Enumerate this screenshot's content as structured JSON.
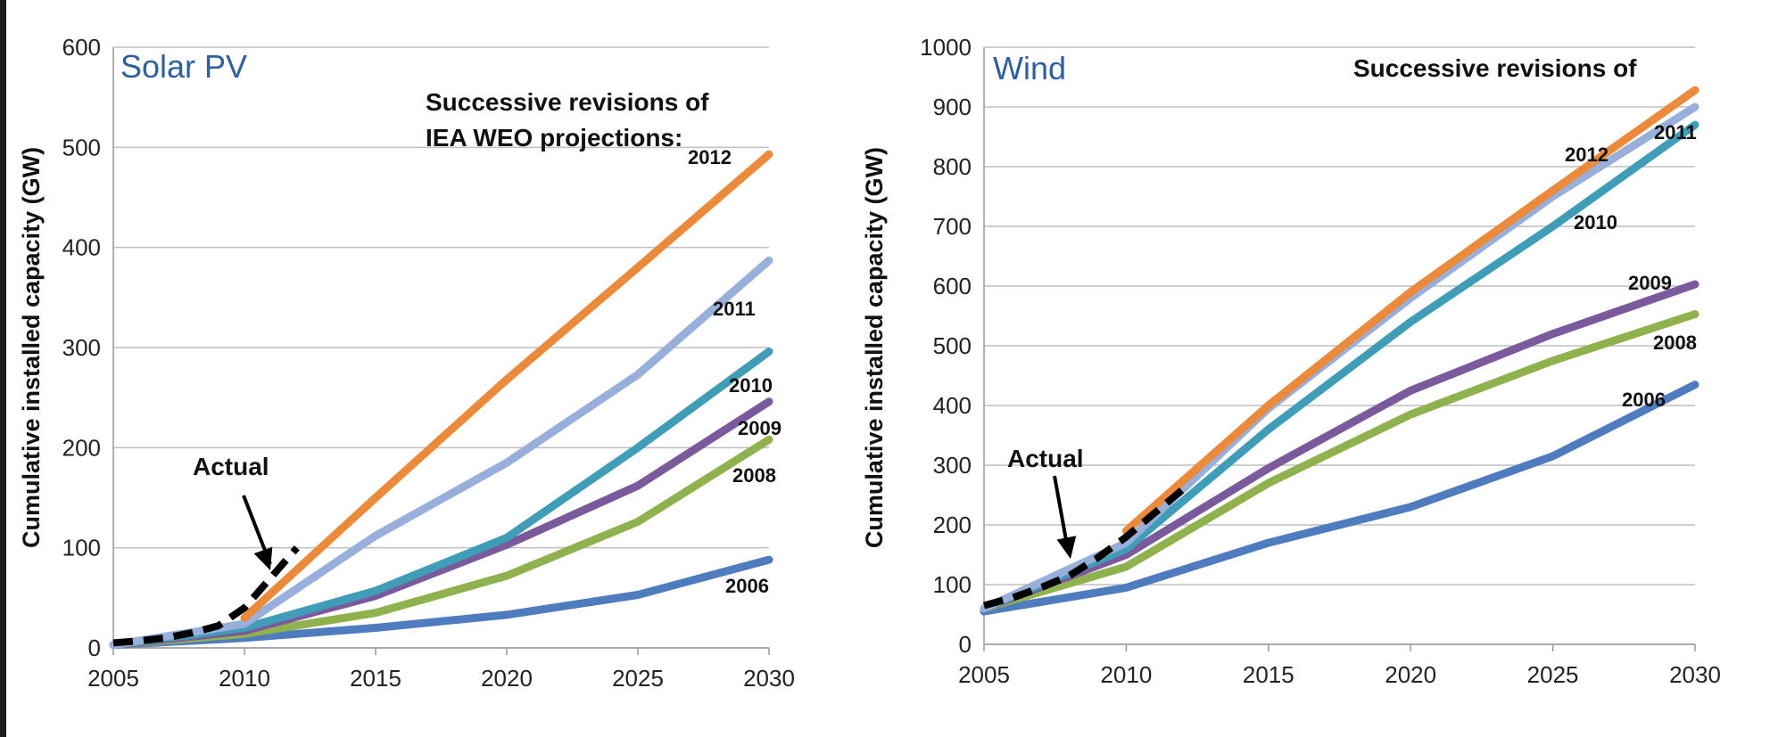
{
  "colors": {
    "2006": "#4f7cbf",
    "2008": "#8fb24f",
    "2009": "#7a5a9c",
    "2010": "#3f9db7",
    "2011": "#98aedb",
    "2012": "#ec8a3b",
    "Actual": "#000000",
    "grid": "#bfbfbf"
  },
  "chart_data": [
    {
      "type": "line",
      "title": "Solar PV",
      "ylabel": "Cumulative installed capacity (GW)",
      "xlabel": "",
      "xlim": [
        2005,
        2030
      ],
      "ylim": [
        0,
        600
      ],
      "xticks": [
        "2005",
        "2010",
        "2015",
        "2020",
        "2025",
        "2030"
      ],
      "yticks": [
        "0",
        "100",
        "200",
        "300",
        "400",
        "500",
        "600"
      ],
      "annotation_lines": [
        "Successive revisions of",
        "IEA WEO projections:"
      ],
      "actual_label": "Actual",
      "series": [
        {
          "name": "2006",
          "x": [
            2005,
            2010,
            2015,
            2020,
            2025,
            2030
          ],
          "y": [
            3,
            10,
            20,
            33,
            53,
            88
          ]
        },
        {
          "name": "2008",
          "x": [
            2005,
            2010,
            2015,
            2020,
            2025,
            2030
          ],
          "y": [
            3,
            14,
            35,
            72,
            126,
            208
          ]
        },
        {
          "name": "2009",
          "x": [
            2005,
            2010,
            2015,
            2020,
            2025,
            2030
          ],
          "y": [
            3,
            17,
            52,
            103,
            162,
            246
          ]
        },
        {
          "name": "2010",
          "x": [
            2005,
            2010,
            2015,
            2020,
            2025,
            2030
          ],
          "y": [
            3,
            20,
            57,
            110,
            200,
            296
          ]
        },
        {
          "name": "2011",
          "x": [
            2005,
            2010,
            2015,
            2020,
            2025,
            2030
          ],
          "y": [
            3,
            24,
            112,
            185,
            273,
            387
          ]
        },
        {
          "name": "2012",
          "x": [
            2010,
            2015,
            2020,
            2025,
            2030
          ],
          "y": [
            30,
            150,
            268,
            380,
            493
          ]
        },
        {
          "name": "Actual",
          "x": [
            2005,
            2006,
            2007,
            2008,
            2009,
            2010,
            2011,
            2012
          ],
          "y": [
            5,
            7,
            10,
            15,
            22,
            40,
            70,
            100
          ],
          "style": "dashed"
        }
      ]
    },
    {
      "type": "line",
      "title": "Wind",
      "ylabel": "Cumulative installed capacity (GW)",
      "xlabel": "",
      "xlim": [
        2005,
        2030
      ],
      "ylim": [
        0,
        1000
      ],
      "xticks": [
        "2005",
        "2010",
        "2015",
        "2020",
        "2025",
        "2030"
      ],
      "yticks": [
        "0",
        "100",
        "200",
        "300",
        "400",
        "500",
        "600",
        "700",
        "800",
        "900",
        "1000"
      ],
      "annotation_lines": [
        "Successive revisions of"
      ],
      "actual_label": "Actual",
      "series": [
        {
          "name": "2006",
          "x": [
            2005,
            2010,
            2015,
            2020,
            2025,
            2030
          ],
          "y": [
            55,
            95,
            170,
            230,
            315,
            435
          ]
        },
        {
          "name": "2008",
          "x": [
            2005,
            2010,
            2015,
            2020,
            2025,
            2030
          ],
          "y": [
            60,
            130,
            270,
            385,
            475,
            553
          ]
        },
        {
          "name": "2009",
          "x": [
            2005,
            2010,
            2015,
            2020,
            2025,
            2030
          ],
          "y": [
            60,
            150,
            295,
            425,
            520,
            603
          ]
        },
        {
          "name": "2010",
          "x": [
            2005,
            2010,
            2015,
            2020,
            2025,
            2030
          ],
          "y": [
            60,
            160,
            360,
            540,
            700,
            870
          ]
        },
        {
          "name": "2011",
          "x": [
            2005,
            2010,
            2015,
            2020,
            2025,
            2030
          ],
          "y": [
            60,
            170,
            395,
            580,
            750,
            900
          ]
        },
        {
          "name": "2012",
          "x": [
            2010,
            2015,
            2020,
            2025,
            2030
          ],
          "y": [
            190,
            400,
            590,
            760,
            928
          ]
        },
        {
          "name": "Actual",
          "x": [
            2005,
            2006,
            2007,
            2008,
            2009,
            2010,
            2011,
            2012
          ],
          "y": [
            65,
            78,
            95,
            115,
            145,
            180,
            220,
            260
          ],
          "style": "dashed"
        }
      ]
    }
  ]
}
